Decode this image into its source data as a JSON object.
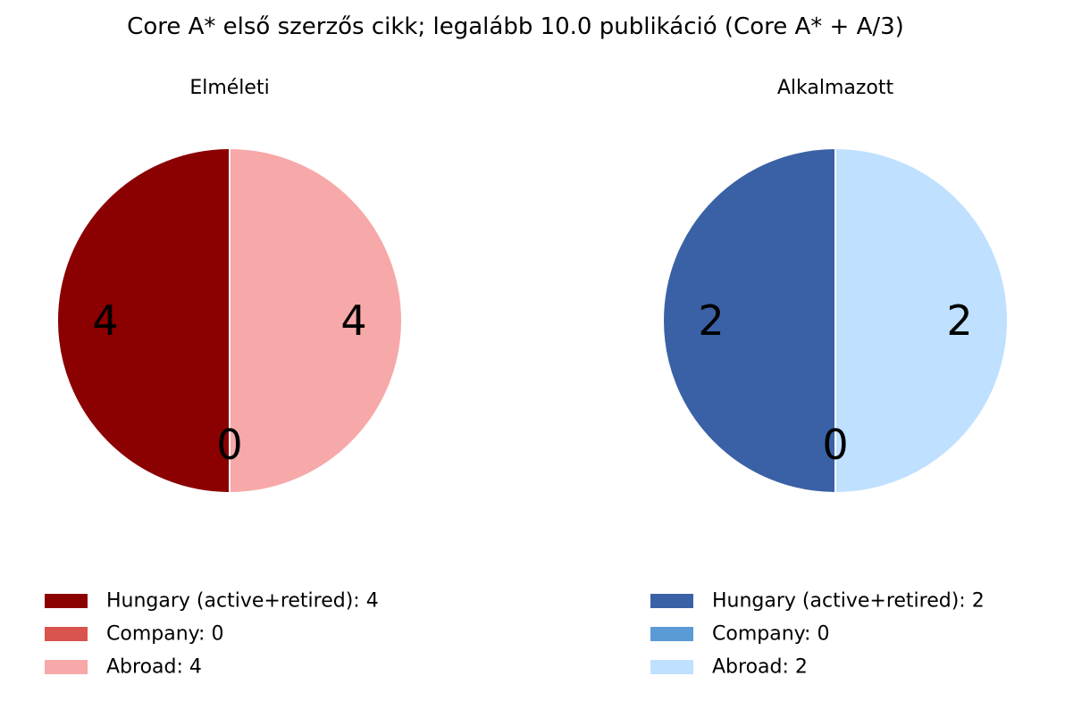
{
  "chart_data": {
    "title": "Core A* első szerzős cikk; legalább 10.0 publikáció (Core A* + A/3)",
    "charts": [
      {
        "type": "pie",
        "subtitle": "Elméleti",
        "slices": [
          {
            "label": "4",
            "value": 4,
            "color": "#8b0000",
            "legend": "Hungary (active+retired): 4"
          },
          {
            "label": "0",
            "value": 0,
            "color": "#d9534f",
            "legend": "Company: 0"
          },
          {
            "label": "4",
            "value": 4,
            "color": "#f7a8a8",
            "legend": "Abroad: 4"
          }
        ]
      },
      {
        "type": "pie",
        "subtitle": "Alkalmazott",
        "slices": [
          {
            "label": "2",
            "value": 2,
            "color": "#3a61a6",
            "legend": "Hungary (active+retired): 2"
          },
          {
            "label": "0",
            "value": 0,
            "color": "#5b9bd5",
            "legend": "Company: 0"
          },
          {
            "label": "2",
            "value": 2,
            "color": "#bfe0ff",
            "legend": "Abroad: 2"
          }
        ]
      }
    ],
    "start_angle_deg": 90,
    "direction": "counterclockwise"
  }
}
